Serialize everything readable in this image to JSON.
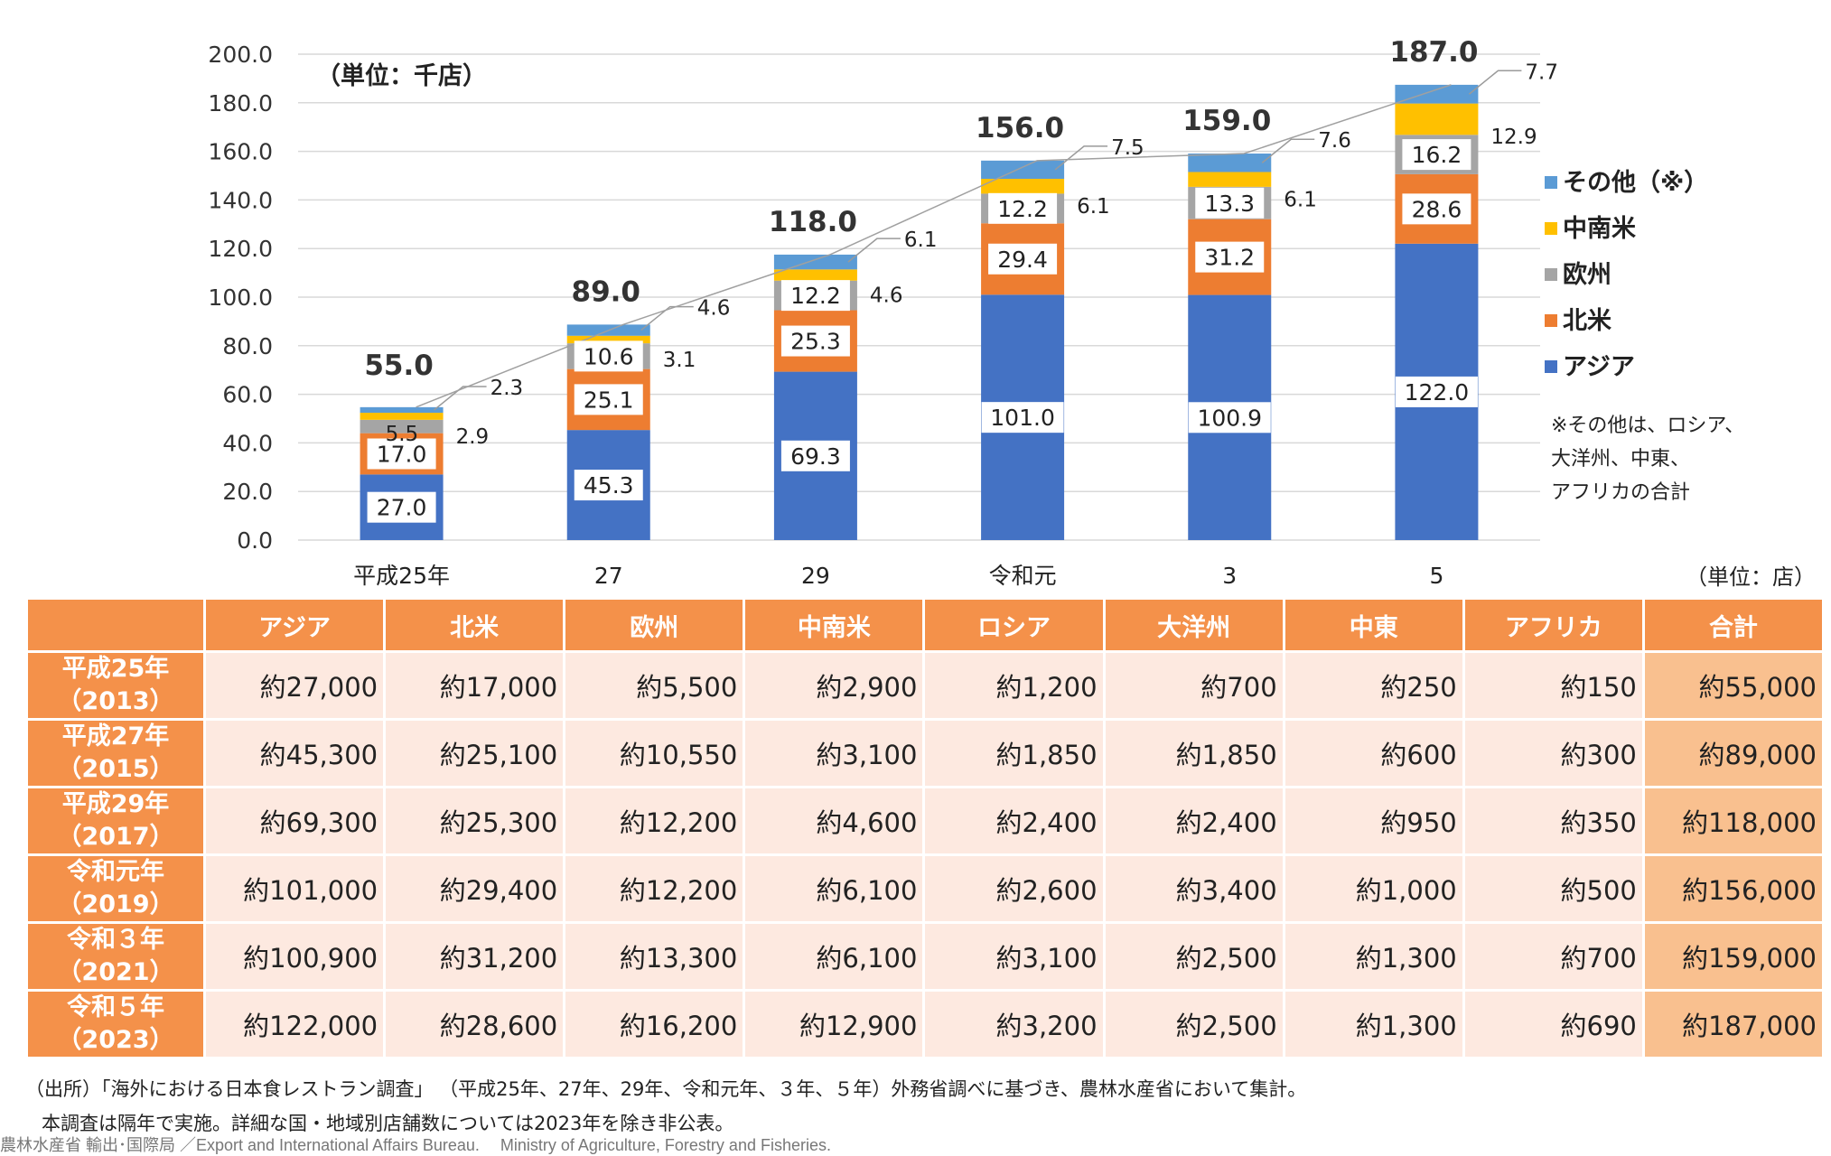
{
  "chart_data": {
    "type": "bar",
    "stacked": true,
    "unit_label": "（単位：千店）",
    "categories": [
      "平成25年",
      "27",
      "29",
      "令和元",
      "3",
      "5"
    ],
    "ylim": [
      0,
      200
    ],
    "yticks": [
      "0.0",
      "20.0",
      "40.0",
      "60.0",
      "80.0",
      "100.0",
      "120.0",
      "140.0",
      "160.0",
      "180.0",
      "200.0"
    ],
    "grid": true,
    "legend_position": "right",
    "series": [
      {
        "name": "アジア",
        "color": "#4472c4",
        "values": [
          27.0,
          45.3,
          69.3,
          101.0,
          100.9,
          122.0
        ],
        "labels": [
          "27.0",
          "45.3",
          "69.3",
          "101.0",
          "100.9",
          "122.0"
        ]
      },
      {
        "name": "北米",
        "color": "#ed7d31",
        "values": [
          17.0,
          25.1,
          25.3,
          29.4,
          31.2,
          28.6
        ],
        "labels": [
          "17.0",
          "25.1",
          "25.3",
          "29.4",
          "31.2",
          "28.6"
        ]
      },
      {
        "name": "欧州",
        "color": "#a5a5a5",
        "values": [
          5.5,
          10.6,
          12.2,
          12.2,
          13.3,
          16.2
        ],
        "labels": [
          "5.5",
          "10.6",
          "12.2",
          "12.2",
          "13.3",
          "16.2"
        ]
      },
      {
        "name": "中南米",
        "color": "#ffc000",
        "values": [
          2.9,
          3.1,
          4.6,
          6.1,
          6.1,
          12.9
        ],
        "labels": [
          "2.9",
          "3.1",
          "4.6",
          "6.1",
          "6.1",
          "12.9"
        ]
      },
      {
        "name": "その他（※）",
        "color": "#5b9bd5",
        "values": [
          2.3,
          4.6,
          6.1,
          7.5,
          7.6,
          7.7
        ],
        "labels": [
          "2.3",
          "4.6",
          "6.1",
          "7.5",
          "7.6",
          "7.7"
        ]
      }
    ],
    "totals": [
      "55.0",
      "89.0",
      "118.0",
      "156.0",
      "159.0",
      "187.0"
    ],
    "total_values": [
      55.0,
      89.0,
      118.0,
      156.0,
      159.0,
      187.0
    ],
    "legend_order": [
      "その他（※）",
      "中南米",
      "欧州",
      "北米",
      "アジア"
    ],
    "note_lines": [
      "※その他は、ロシア、",
      "大洋州、中東、",
      "アフリカの合計"
    ]
  },
  "table": {
    "unit_label": "（単位：店）",
    "headers": [
      "",
      "アジア",
      "北米",
      "欧州",
      "中南米",
      "ロシア",
      "大洋州",
      "中東",
      "アフリカ",
      "合計"
    ],
    "rows": [
      {
        "year": "平成25年",
        "year_paren": "（2013）",
        "values": [
          "約27,000",
          "約17,000",
          "約5,500",
          "約2,900",
          "約1,200",
          "約700",
          "約250",
          "約150",
          "約55,000"
        ]
      },
      {
        "year": "平成27年",
        "year_paren": "（2015）",
        "values": [
          "約45,300",
          "約25,100",
          "約10,550",
          "約3,100",
          "約1,850",
          "約1,850",
          "約600",
          "約300",
          "約89,000"
        ]
      },
      {
        "year": "平成29年",
        "year_paren": "（2017）",
        "values": [
          "約69,300",
          "約25,300",
          "約12,200",
          "約4,600",
          "約2,400",
          "約2,400",
          "約950",
          "約350",
          "約118,000"
        ]
      },
      {
        "year": "令和元年",
        "year_paren": "（2019）",
        "values": [
          "約101,000",
          "約29,400",
          "約12,200",
          "約6,100",
          "約2,600",
          "約3,400",
          "約1,000",
          "約500",
          "約156,000"
        ]
      },
      {
        "year": "令和３年",
        "year_paren": "（2021）",
        "values": [
          "約100,900",
          "約31,200",
          "約13,300",
          "約6,100",
          "約3,100",
          "約2,500",
          "約1,300",
          "約700",
          "約159,000"
        ]
      },
      {
        "year": "令和５年",
        "year_paren": "（2023）",
        "values": [
          "約122,000",
          "約28,600",
          "約16,200",
          "約12,900",
          "約3,200",
          "約2,500",
          "約1,300",
          "約690",
          "約187,000"
        ]
      }
    ]
  },
  "footer": {
    "source": "（出所）「海外における日本食レストラン調査」 （平成25年、27年、29年、令和元年、３年、５年）外務省調べに基づき、農林水産省において集計。",
    "note": "本調査は隔年で実施。詳細な国・地域別店舗数については2023年を除き非公表。",
    "credit": "農林水産省 輸出･国際局 ／Export and International Affairs Bureau.　 Ministry of Agriculture, Forestry and Fisheries."
  }
}
